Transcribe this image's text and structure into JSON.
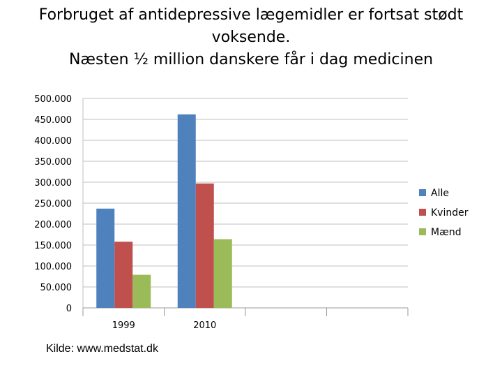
{
  "slide": {
    "title_line1": "Forbruget af antidepressive lægemidler er fortsat stødt",
    "title_line2": "voksende.",
    "title_line3": "Næsten ½ million danskere får i dag medicinen",
    "source": "Kilde: www.medstat.dk"
  },
  "chart_data": {
    "type": "bar",
    "title": "",
    "xlabel": "",
    "ylabel": "",
    "categories": [
      "1999",
      "2010",
      "",
      ""
    ],
    "series": [
      {
        "name": "Alle",
        "color": "#4F81BD",
        "values": [
          237000,
          462000,
          null,
          null
        ]
      },
      {
        "name": "Kvinder",
        "color": "#C0504D",
        "values": [
          158000,
          297000,
          null,
          null
        ]
      },
      {
        "name": "Mænd",
        "color": "#9BBB59",
        "values": [
          79000,
          164000,
          null,
          null
        ]
      }
    ],
    "ylim": [
      0,
      500000
    ],
    "yticks": [
      0,
      50000,
      100000,
      150000,
      200000,
      250000,
      300000,
      350000,
      400000,
      450000,
      500000
    ],
    "ytick_labels": [
      "0",
      "50.000",
      "100.000",
      "150.000",
      "200.000",
      "250.000",
      "300.000",
      "350.000",
      "400.000",
      "450.000",
      "500.000"
    ],
    "grid": true,
    "legend": "right"
  }
}
